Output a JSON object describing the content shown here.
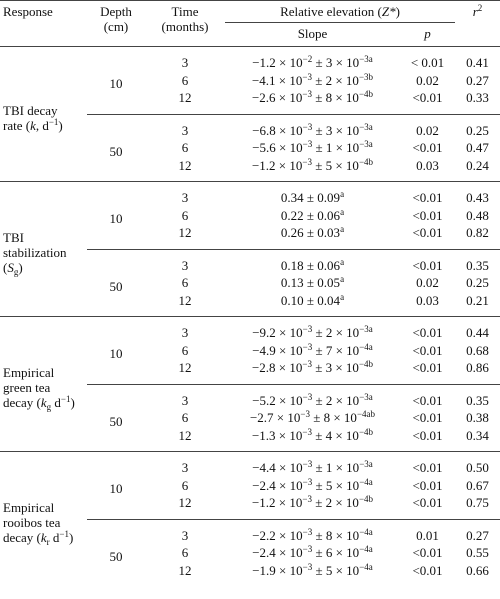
{
  "header": {
    "response": "Response",
    "depth": [
      "Depth",
      "(cm)"
    ],
    "time": [
      "Time",
      "(months)"
    ],
    "elevation": [
      {
        "text": "Relative elevation ("
      },
      {
        "text": "Z*",
        "style": "italic"
      },
      {
        "text": ")"
      }
    ],
    "slope": "Slope",
    "p": [
      {
        "text": "p",
        "style": "italic"
      }
    ],
    "r2": [
      {
        "text": "r",
        "style": "italic"
      },
      {
        "text": "2",
        "style": "sup"
      }
    ]
  },
  "responses": [
    {
      "label": [
        [
          {
            "text": "TBI decay"
          }
        ],
        [
          {
            "text": "rate ("
          },
          {
            "text": "k",
            "style": "italic"
          },
          {
            "text": ", d"
          },
          {
            "text": "−1",
            "style": "sup"
          },
          {
            "text": ")"
          }
        ]
      ],
      "depths": [
        {
          "depth": "10",
          "rows": [
            {
              "time": "3",
              "slope": [
                {
                  "text": "−1.2 × 10"
                },
                {
                  "text": "−2",
                  "style": "sup"
                },
                {
                  "text": " ± 3 × 10"
                },
                {
                  "text": "−3",
                  "style": "sup"
                },
                {
                  "text": "a",
                  "style": "sup"
                }
              ],
              "p": "< 0.01",
              "r2": "0.41"
            },
            {
              "time": "6",
              "slope": [
                {
                  "text": "−4.1 × 10"
                },
                {
                  "text": "−3",
                  "style": "sup"
                },
                {
                  "text": " ± 2 × 10"
                },
                {
                  "text": "−3",
                  "style": "sup"
                },
                {
                  "text": "b",
                  "style": "sup"
                }
              ],
              "p": "0.02",
              "r2": "0.27"
            },
            {
              "time": "12",
              "slope": [
                {
                  "text": "−2.6 × 10"
                },
                {
                  "text": "−3",
                  "style": "sup"
                },
                {
                  "text": " ± 8 × 10"
                },
                {
                  "text": "−4",
                  "style": "sup"
                },
                {
                  "text": "b",
                  "style": "sup"
                }
              ],
              "p": "<0.01",
              "r2": "0.33"
            }
          ]
        },
        {
          "depth": "50",
          "rows": [
            {
              "time": "3",
              "slope": [
                {
                  "text": "−6.8 × 10"
                },
                {
                  "text": "−3",
                  "style": "sup"
                },
                {
                  "text": " ± 3 × 10"
                },
                {
                  "text": "−3",
                  "style": "sup"
                },
                {
                  "text": "a",
                  "style": "sup"
                }
              ],
              "p": "0.02",
              "r2": "0.25"
            },
            {
              "time": "6",
              "slope": [
                {
                  "text": "−5.6 × 10"
                },
                {
                  "text": "−3",
                  "style": "sup"
                },
                {
                  "text": " ± 1 × 10"
                },
                {
                  "text": "−3",
                  "style": "sup"
                },
                {
                  "text": "a",
                  "style": "sup"
                }
              ],
              "p": "<0.01",
              "r2": "0.47"
            },
            {
              "time": "12",
              "slope": [
                {
                  "text": "−1.2 × 10"
                },
                {
                  "text": "−3",
                  "style": "sup"
                },
                {
                  "text": " ± 5 × 10"
                },
                {
                  "text": "−4",
                  "style": "sup"
                },
                {
                  "text": "b",
                  "style": "sup"
                }
              ],
              "p": "0.03",
              "r2": "0.24"
            }
          ]
        }
      ]
    },
    {
      "label": [
        [
          {
            "text": "TBI"
          }
        ],
        [
          {
            "text": "stabilization"
          }
        ],
        [
          {
            "text": "("
          },
          {
            "text": "S",
            "style": "italic"
          },
          {
            "text": "g",
            "style": "sub"
          },
          {
            "text": ")"
          }
        ]
      ],
      "depths": [
        {
          "depth": "10",
          "rows": [
            {
              "time": "3",
              "slope": [
                {
                  "text": "0.34 ± 0.09"
                },
                {
                  "text": "a",
                  "style": "sup"
                }
              ],
              "p": "<0.01",
              "r2": "0.43"
            },
            {
              "time": "6",
              "slope": [
                {
                  "text": "0.22 ± 0.06"
                },
                {
                  "text": "a",
                  "style": "sup"
                }
              ],
              "p": "<0.01",
              "r2": "0.48"
            },
            {
              "time": "12",
              "slope": [
                {
                  "text": "0.26 ± 0.03"
                },
                {
                  "text": "a",
                  "style": "sup"
                }
              ],
              "p": "<0.01",
              "r2": "0.82"
            }
          ]
        },
        {
          "depth": "50",
          "rows": [
            {
              "time": "3",
              "slope": [
                {
                  "text": "0.18 ± 0.06"
                },
                {
                  "text": "a",
                  "style": "sup"
                }
              ],
              "p": "<0.01",
              "r2": "0.35"
            },
            {
              "time": "6",
              "slope": [
                {
                  "text": "0.13 ± 0.05"
                },
                {
                  "text": "a",
                  "style": "sup"
                }
              ],
              "p": "0.02",
              "r2": "0.25"
            },
            {
              "time": "12",
              "slope": [
                {
                  "text": "0.10 ± 0.04"
                },
                {
                  "text": "a",
                  "style": "sup"
                }
              ],
              "p": "0.03",
              "r2": "0.21"
            }
          ]
        }
      ]
    },
    {
      "label": [
        [
          {
            "text": "Empirical"
          }
        ],
        [
          {
            "text": "green tea"
          }
        ],
        [
          {
            "text": "decay ("
          },
          {
            "text": "k",
            "style": "italic"
          },
          {
            "text": "g",
            "style": "sub"
          },
          {
            "text": " d"
          },
          {
            "text": "−1",
            "style": "sup"
          },
          {
            "text": ")"
          }
        ]
      ],
      "depths": [
        {
          "depth": "10",
          "rows": [
            {
              "time": "3",
              "slope": [
                {
                  "text": "−9.2 × 10"
                },
                {
                  "text": "−3",
                  "style": "sup"
                },
                {
                  "text": " ± 2 × 10"
                },
                {
                  "text": "−3",
                  "style": "sup"
                },
                {
                  "text": "a",
                  "style": "sup"
                }
              ],
              "p": "<0.01",
              "r2": "0.44"
            },
            {
              "time": "6",
              "slope": [
                {
                  "text": "−4.9 × 10"
                },
                {
                  "text": "−3",
                  "style": "sup"
                },
                {
                  "text": " ± 7 × 10"
                },
                {
                  "text": "−4",
                  "style": "sup"
                },
                {
                  "text": "a",
                  "style": "sup"
                }
              ],
              "p": "<0.01",
              "r2": "0.68"
            },
            {
              "time": "12",
              "slope": [
                {
                  "text": "−2.8 × 10"
                },
                {
                  "text": "−3",
                  "style": "sup"
                },
                {
                  "text": " ± 3 × 10"
                },
                {
                  "text": "−4",
                  "style": "sup"
                },
                {
                  "text": "b",
                  "style": "sup"
                }
              ],
              "p": "<0.01",
              "r2": "0.86"
            }
          ]
        },
        {
          "depth": "50",
          "rows": [
            {
              "time": "3",
              "slope": [
                {
                  "text": "−5.2 × 10"
                },
                {
                  "text": "−3",
                  "style": "sup"
                },
                {
                  "text": " ± 2 × 10"
                },
                {
                  "text": "−3",
                  "style": "sup"
                },
                {
                  "text": "a",
                  "style": "sup"
                }
              ],
              "p": "<0.01",
              "r2": "0.35"
            },
            {
              "time": "6",
              "slope": [
                {
                  "text": "−2.7 × 10"
                },
                {
                  "text": "−3",
                  "style": "sup"
                },
                {
                  "text": " ± 8 × 10"
                },
                {
                  "text": "−4",
                  "style": "sup"
                },
                {
                  "text": "ab",
                  "style": "sup"
                }
              ],
              "p": "<0.01",
              "r2": "0.38"
            },
            {
              "time": "12",
              "slope": [
                {
                  "text": "−1.3 × 10"
                },
                {
                  "text": "−3",
                  "style": "sup"
                },
                {
                  "text": " ± 4 × 10"
                },
                {
                  "text": "−4",
                  "style": "sup"
                },
                {
                  "text": "b",
                  "style": "sup"
                }
              ],
              "p": "<0.01",
              "r2": "0.34"
            }
          ]
        }
      ]
    },
    {
      "label": [
        [
          {
            "text": "Empirical"
          }
        ],
        [
          {
            "text": "rooibos tea"
          }
        ],
        [
          {
            "text": "decay ("
          },
          {
            "text": "k",
            "style": "italic"
          },
          {
            "text": "r",
            "style": "sub"
          },
          {
            "text": " d"
          },
          {
            "text": "−1",
            "style": "sup"
          },
          {
            "text": ")"
          }
        ]
      ],
      "depths": [
        {
          "depth": "10",
          "rows": [
            {
              "time": "3",
              "slope": [
                {
                  "text": "−4.4 × 10"
                },
                {
                  "text": "−3",
                  "style": "sup"
                },
                {
                  "text": " ± 1 × 10"
                },
                {
                  "text": "−3",
                  "style": "sup"
                },
                {
                  "text": "a",
                  "style": "sup"
                }
              ],
              "p": "<0.01",
              "r2": "0.50"
            },
            {
              "time": "6",
              "slope": [
                {
                  "text": "−2.4 × 10"
                },
                {
                  "text": "−3",
                  "style": "sup"
                },
                {
                  "text": " ± 5 × 10"
                },
                {
                  "text": "−4",
                  "style": "sup"
                },
                {
                  "text": "a",
                  "style": "sup"
                }
              ],
              "p": "<0.01",
              "r2": "0.67"
            },
            {
              "time": "12",
              "slope": [
                {
                  "text": "−1.2 × 10"
                },
                {
                  "text": "−3",
                  "style": "sup"
                },
                {
                  "text": " ± 2 × 10"
                },
                {
                  "text": "−4",
                  "style": "sup"
                },
                {
                  "text": "b",
                  "style": "sup"
                }
              ],
              "p": "<0.01",
              "r2": "0.75"
            }
          ]
        },
        {
          "depth": "50",
          "rows": [
            {
              "time": "3",
              "slope": [
                {
                  "text": "−2.2 × 10"
                },
                {
                  "text": "−3",
                  "style": "sup"
                },
                {
                  "text": " ± 8 × 10"
                },
                {
                  "text": "−4",
                  "style": "sup"
                },
                {
                  "text": "a",
                  "style": "sup"
                }
              ],
              "p": "0.01",
              "r2": "0.27"
            },
            {
              "time": "6",
              "slope": [
                {
                  "text": "−2.4 × 10"
                },
                {
                  "text": "−3",
                  "style": "sup"
                },
                {
                  "text": " ± 6 × 10"
                },
                {
                  "text": "−4",
                  "style": "sup"
                },
                {
                  "text": "a",
                  "style": "sup"
                }
              ],
              "p": "<0.01",
              "r2": "0.55"
            },
            {
              "time": "12",
              "slope": [
                {
                  "text": "−1.9 × 10"
                },
                {
                  "text": "−3",
                  "style": "sup"
                },
                {
                  "text": " ± 5 × 10"
                },
                {
                  "text": "−4",
                  "style": "sup"
                },
                {
                  "text": "a",
                  "style": "sup"
                }
              ],
              "p": "<0.01",
              "r2": "0.66"
            }
          ]
        }
      ]
    }
  ]
}
